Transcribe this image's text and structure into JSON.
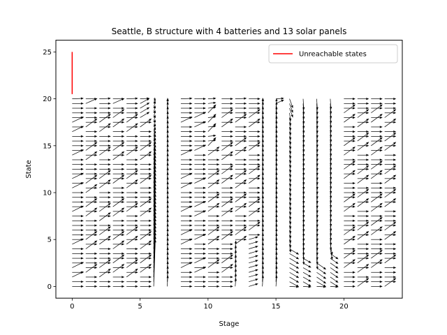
{
  "chart_data": {
    "type": "quiver",
    "title": "Seattle, B structure with 4 batteries and 13 solar panels",
    "xlabel": "Stage",
    "ylabel": "State",
    "xlim": [
      -1.2,
      24.3
    ],
    "ylim": [
      -1.25,
      26.25
    ],
    "xticks": [
      0,
      5,
      10,
      15,
      20
    ],
    "yticks": [
      0,
      5,
      10,
      15,
      20,
      25
    ],
    "grid": false,
    "legend": {
      "position": "top-right",
      "entries": [
        "Unreachable states"
      ]
    },
    "unreachable_states": {
      "name": "Unreachable states",
      "color": "#ff0000",
      "x": [
        0,
        0
      ],
      "y": [
        20.5,
        25
      ]
    },
    "vector_field": {
      "stages": [
        0,
        1,
        2,
        3,
        4,
        5,
        6,
        7,
        8,
        9,
        10,
        11,
        12,
        13,
        14,
        15,
        16,
        17,
        18,
        19,
        20,
        21,
        22,
        23
      ],
      "state_min": 0,
      "state_max": 20,
      "state_step": 0.5,
      "arrow_color": "#000000",
      "arrow_length_stages": 0.85
    }
  }
}
